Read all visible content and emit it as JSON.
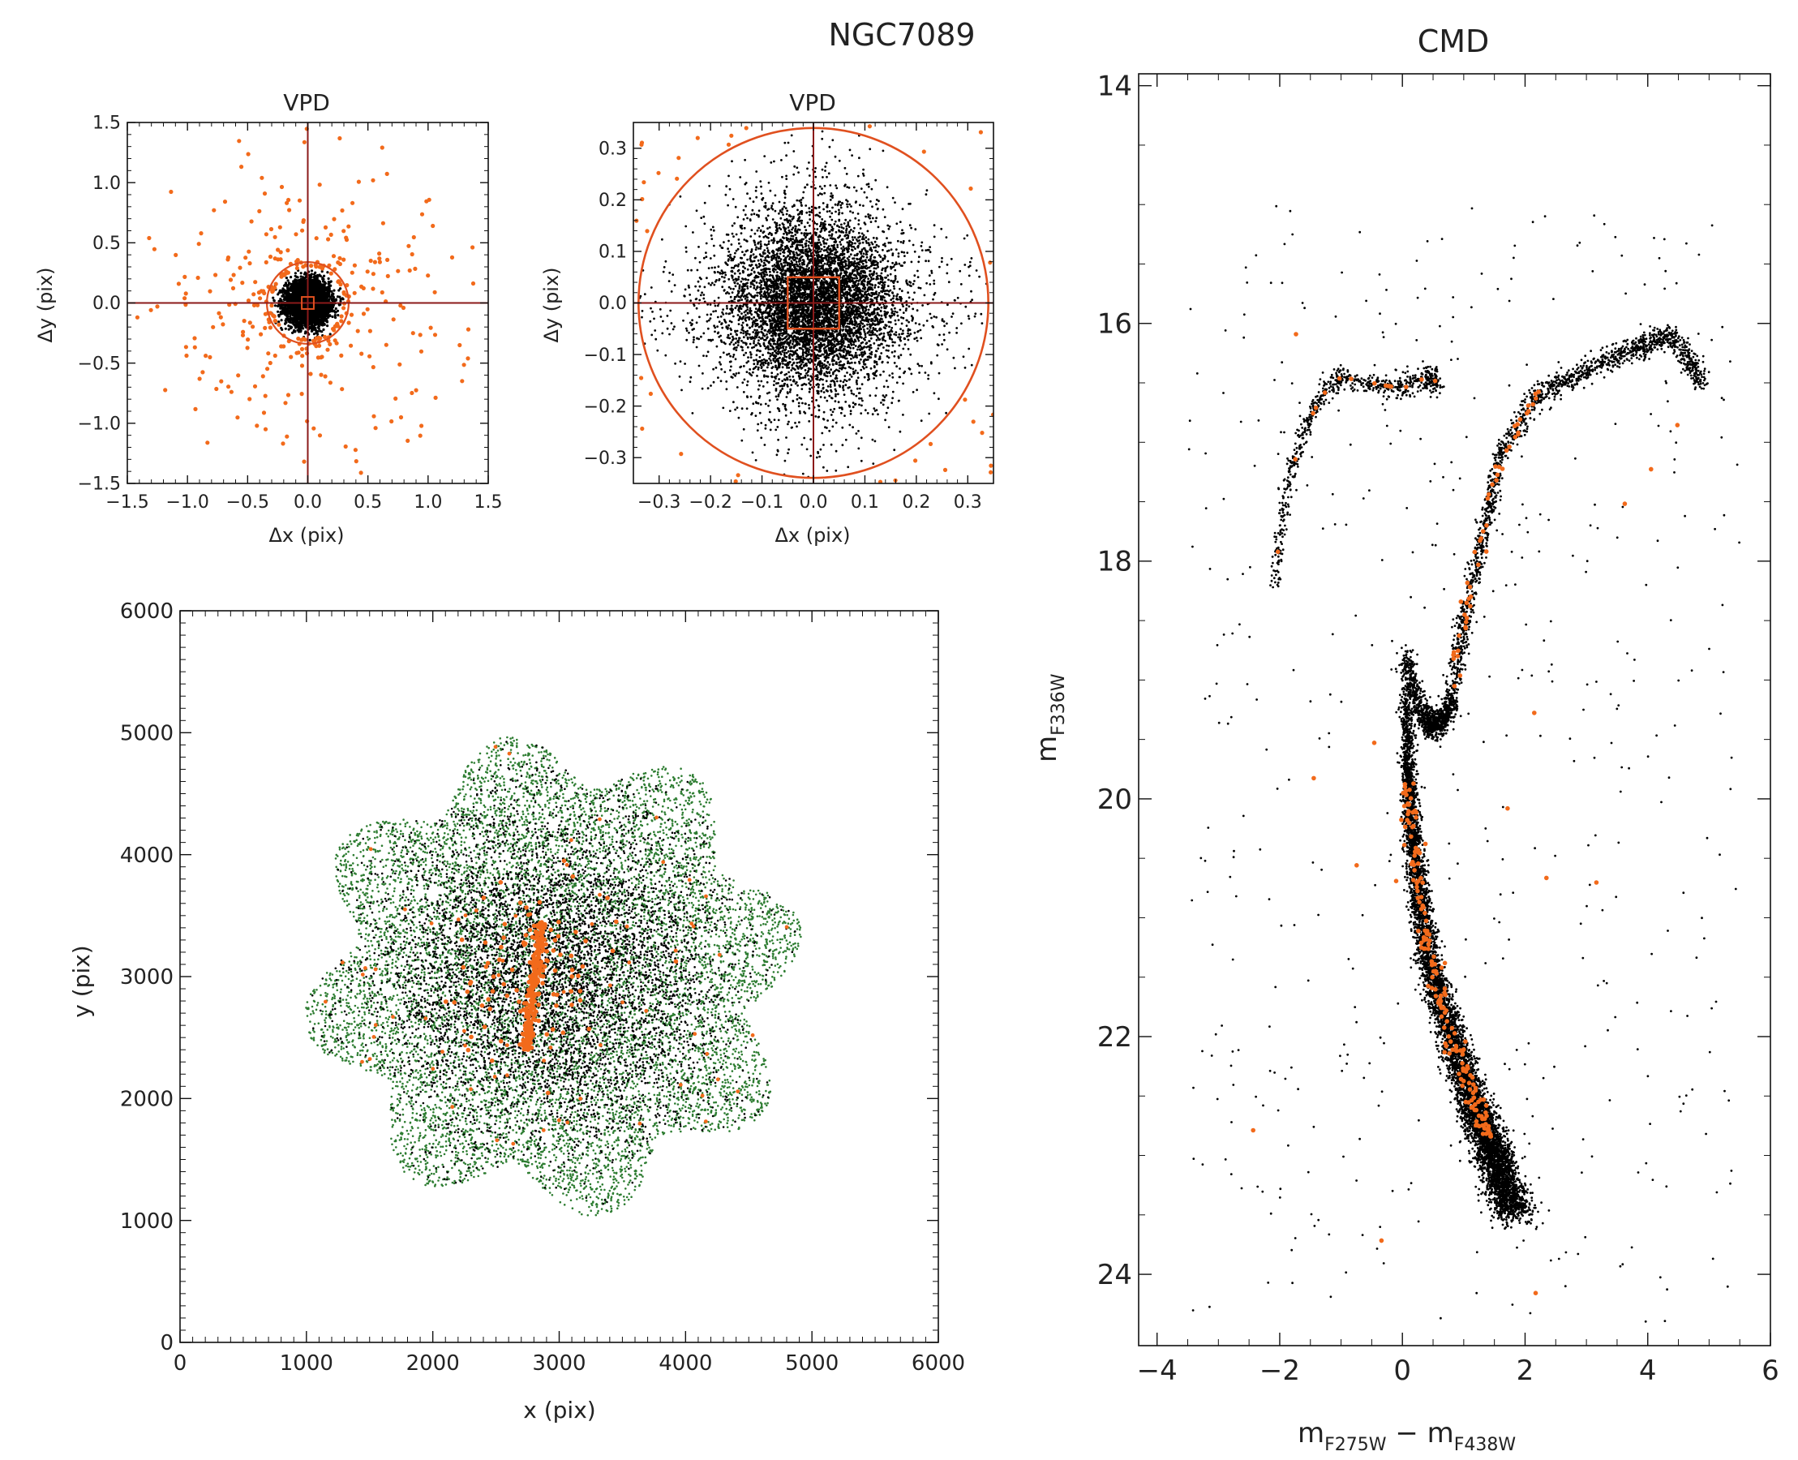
{
  "figure_title": "NGC7089",
  "colors": {
    "field": "#000000",
    "selected": "#F26A1B",
    "cross": "#8B1A1A",
    "circle": "#E0501F",
    "footprint": "#2E7D32"
  },
  "chart_data": [
    {
      "type": "scatter",
      "title": "VPD",
      "xlabel": "Δx (pix)",
      "ylabel": "Δy (pix)",
      "xlim": [
        -1.5,
        1.5
      ],
      "ylim": [
        -1.5,
        1.5
      ],
      "xticks": [
        -1.5,
        -1.0,
        -0.5,
        0.0,
        0.5,
        1.0,
        1.5
      ],
      "yticks": [
        -1.5,
        -1.0,
        -0.5,
        0.0,
        0.5,
        1.0,
        1.5
      ],
      "xtick_labels": [
        "−1.5",
        "−1.0",
        "−0.5",
        "0.0",
        "0.5",
        "1.0",
        "1.5"
      ],
      "ytick_labels": [
        "−1.5",
        "−1.0",
        "−0.5",
        "0.0",
        "0.5",
        "1.0",
        "1.5"
      ],
      "selection_circle_radius": 0.34,
      "reference_box_halfwidth": 0.05,
      "crosshair": [
        0.0,
        0.0
      ],
      "series": [
        {
          "color": "black",
          "marker": "dot",
          "x_center": 0.0,
          "y_center": 0.0,
          "sigma": 0.09,
          "radius_max": 0.34,
          "count": 4000
        },
        {
          "color": "orange",
          "marker": "dot",
          "x_center": 0.0,
          "y_center": 0.0,
          "radius_min": 0.3,
          "radius_max": 1.5,
          "count": 330
        }
      ]
    },
    {
      "type": "scatter",
      "title": "VPD",
      "xlabel": "Δx (pix)",
      "ylabel": "Δy (pix)",
      "xlim": [
        -0.35,
        0.35
      ],
      "ylim": [
        -0.35,
        0.35
      ],
      "xticks": [
        -0.3,
        -0.2,
        -0.1,
        0.0,
        0.1,
        0.2,
        0.3
      ],
      "yticks": [
        -0.3,
        -0.2,
        -0.1,
        0.0,
        0.1,
        0.2,
        0.3
      ],
      "xtick_labels": [
        "−0.3",
        "−0.2",
        "−0.1",
        "0.0",
        "0.1",
        "0.2",
        "0.3"
      ],
      "ytick_labels": [
        "−0.3",
        "−0.2",
        "−0.1",
        "0.0",
        "0.1",
        "0.2",
        "0.3"
      ],
      "selection_circle_radius": 0.34,
      "reference_box_halfwidth": 0.05,
      "crosshair": [
        0.0,
        0.0
      ],
      "series": [
        {
          "color": "black",
          "marker": "dot",
          "x_center": 0.0,
          "y_center": 0.0,
          "sigma": 0.08,
          "radius_max": 0.34,
          "count": 7000
        },
        {
          "color": "orange",
          "marker": "dot",
          "region": "outside circle, within box",
          "count": 35
        }
      ]
    },
    {
      "type": "scatter",
      "title": "",
      "xlabel": "x (pix)",
      "ylabel": "y (pix)",
      "xlim": [
        0,
        6000
      ],
      "ylim": [
        0,
        6000
      ],
      "xticks": [
        0,
        1000,
        2000,
        3000,
        4000,
        5000,
        6000
      ],
      "yticks": [
        0,
        1000,
        2000,
        3000,
        4000,
        5000,
        6000
      ],
      "xtick_labels": [
        "0",
        "1000",
        "2000",
        "3000",
        "4000",
        "5000",
        "6000"
      ],
      "ytick_labels": [
        "0",
        "1000",
        "2000",
        "3000",
        "4000",
        "5000",
        "6000"
      ],
      "footprint_center": [
        2950,
        3000
      ],
      "footprint_radius": 2000,
      "footprint_shape": "8-pointed star",
      "series": [
        {
          "color": "green",
          "marker": "dot",
          "region": "footprint",
          "count": 9000
        },
        {
          "color": "black",
          "marker": "dot",
          "region": "footprint core",
          "count": 6000
        },
        {
          "color": "orange",
          "marker": "dot",
          "region": "central streak near x=2800",
          "x": [
            2740,
            2860
          ],
          "y": [
            2400,
            3450
          ],
          "count": 220
        },
        {
          "color": "orange",
          "marker": "dot",
          "region": "scattered",
          "count": 70
        }
      ]
    },
    {
      "type": "scatter",
      "title": "CMD",
      "xlabel": "m_F275W − m_F438W",
      "ylabel": "m_F336W",
      "xlim": [
        -4.3,
        6.0
      ],
      "ylim": [
        24.6,
        13.9
      ],
      "x_inverted": false,
      "y_inverted": true,
      "xticks": [
        -4,
        -2,
        0,
        2,
        4,
        6
      ],
      "yticks": [
        14,
        16,
        18,
        20,
        22,
        24
      ],
      "xtick_labels": [
        "−4",
        "−2",
        "0",
        "2",
        "4",
        "6"
      ],
      "ytick_labels": [
        "14",
        "16",
        "18",
        "20",
        "22",
        "24"
      ],
      "sequences": {
        "main_sequence_ridge": {
          "color": [
            0.05,
            0.1,
            0.2,
            0.4,
            0.8,
            1.2,
            1.5,
            1.8
          ],
          "mag": [
            19.0,
            19.8,
            20.5,
            21.3,
            22.0,
            22.6,
            23.0,
            23.5
          ]
        },
        "subgiant_branch": {
          "color": [
            0.05,
            0.3,
            0.55,
            0.8
          ],
          "mag": [
            18.8,
            19.3,
            19.4,
            19.2
          ]
        },
        "red_giant_branch": {
          "color": [
            0.8,
            1.0,
            1.3,
            1.6,
            2.2,
            3.0,
            3.8,
            4.4,
            4.9
          ],
          "mag": [
            19.2,
            18.5,
            17.8,
            17.1,
            16.6,
            16.4,
            16.2,
            16.1,
            16.5
          ]
        },
        "horizontal_branch": {
          "color": [
            -2.1,
            -1.9,
            -1.6,
            -1.3,
            -1.0,
            -0.5,
            0.0,
            0.4,
            0.6
          ],
          "mag": [
            18.2,
            17.4,
            16.9,
            16.6,
            16.45,
            16.5,
            16.55,
            16.45,
            16.5
          ]
        }
      },
      "series": [
        {
          "color": "black",
          "marker": "dot",
          "count": 11000
        },
        {
          "color": "orange",
          "marker": "dot",
          "count": 260
        }
      ]
    }
  ]
}
